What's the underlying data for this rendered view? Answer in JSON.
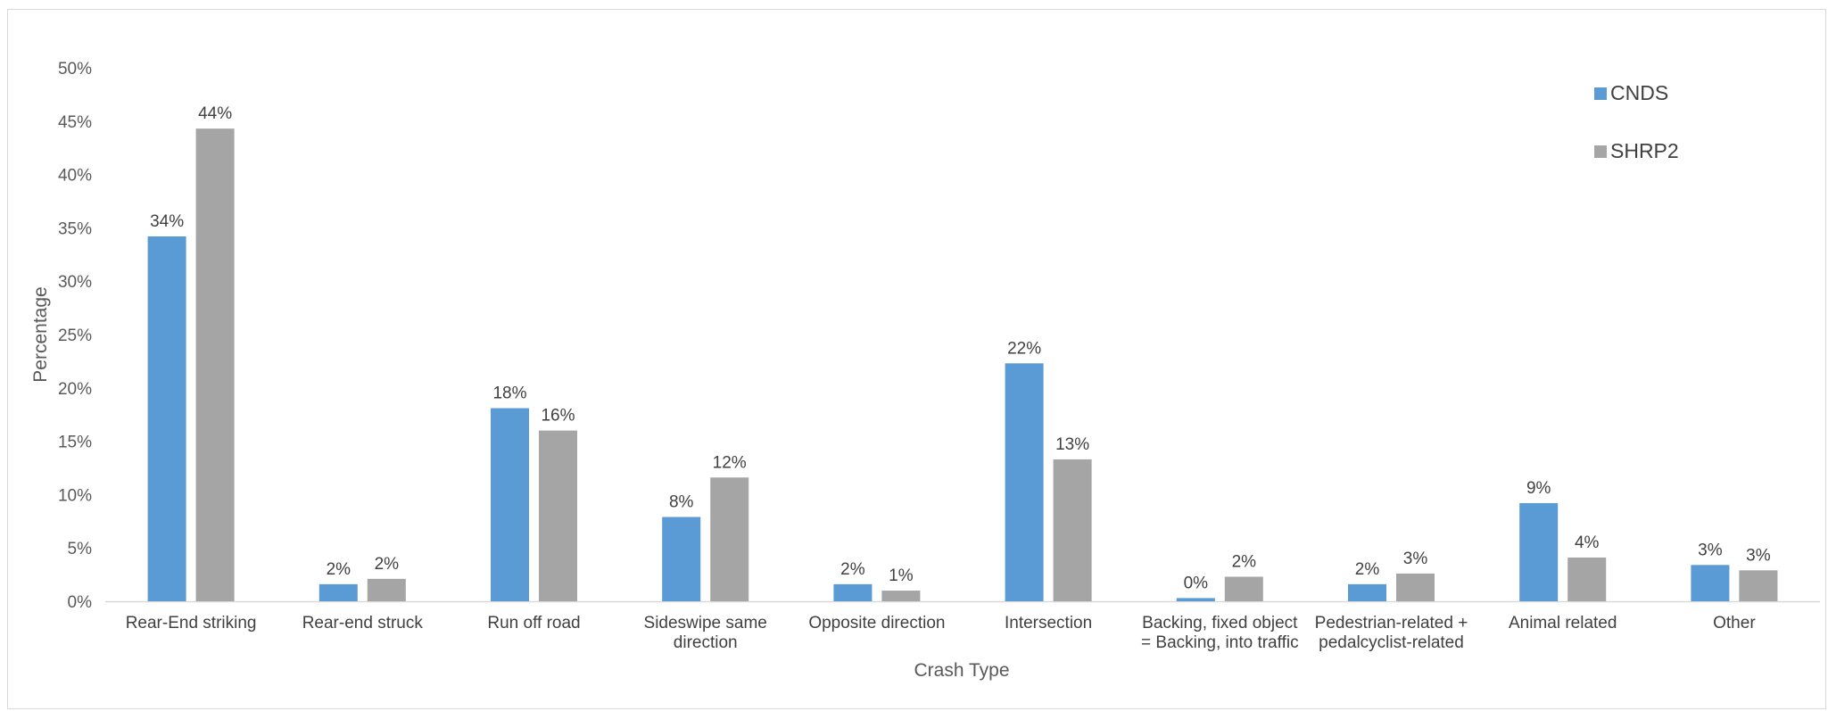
{
  "chart_data": {
    "type": "bar",
    "title": "",
    "xlabel": "Crash Type",
    "ylabel": "Percentage",
    "ylim": [
      0,
      50
    ],
    "yticks": [
      "0%",
      "5%",
      "10%",
      "15%",
      "20%",
      "25%",
      "30%",
      "35%",
      "40%",
      "45%",
      "50%"
    ],
    "grid": false,
    "legend_position": "top-right",
    "categories": [
      [
        "Rear-End striking"
      ],
      [
        "Rear-end struck"
      ],
      [
        "Run off road"
      ],
      [
        "Sideswipe same",
        "direction"
      ],
      [
        "Opposite direction"
      ],
      [
        "Intersection"
      ],
      [
        "Backing, fixed object",
        "= Backing, into traffic"
      ],
      [
        "Pedestrian-related +",
        "pedalcyclist-related"
      ],
      [
        "Animal related"
      ],
      [
        "Other"
      ]
    ],
    "series": [
      {
        "name": "CNDS",
        "color": "#5b9bd5",
        "values": [
          34.2,
          1.6,
          18.1,
          7.9,
          1.6,
          22.3,
          0.3,
          1.6,
          9.2,
          3.4
        ],
        "labels": [
          "34%",
          "2%",
          "18%",
          "8%",
          "2%",
          "22%",
          "0%",
          "2%",
          "9%",
          "3%"
        ]
      },
      {
        "name": "SHRP2",
        "color": "#a5a5a5",
        "values": [
          44.3,
          2.1,
          16.0,
          11.6,
          1.0,
          13.3,
          2.3,
          2.6,
          4.1,
          2.9
        ],
        "labels": [
          "44%",
          "2%",
          "16%",
          "12%",
          "1%",
          "13%",
          "2%",
          "3%",
          "4%",
          "3%"
        ]
      }
    ]
  }
}
